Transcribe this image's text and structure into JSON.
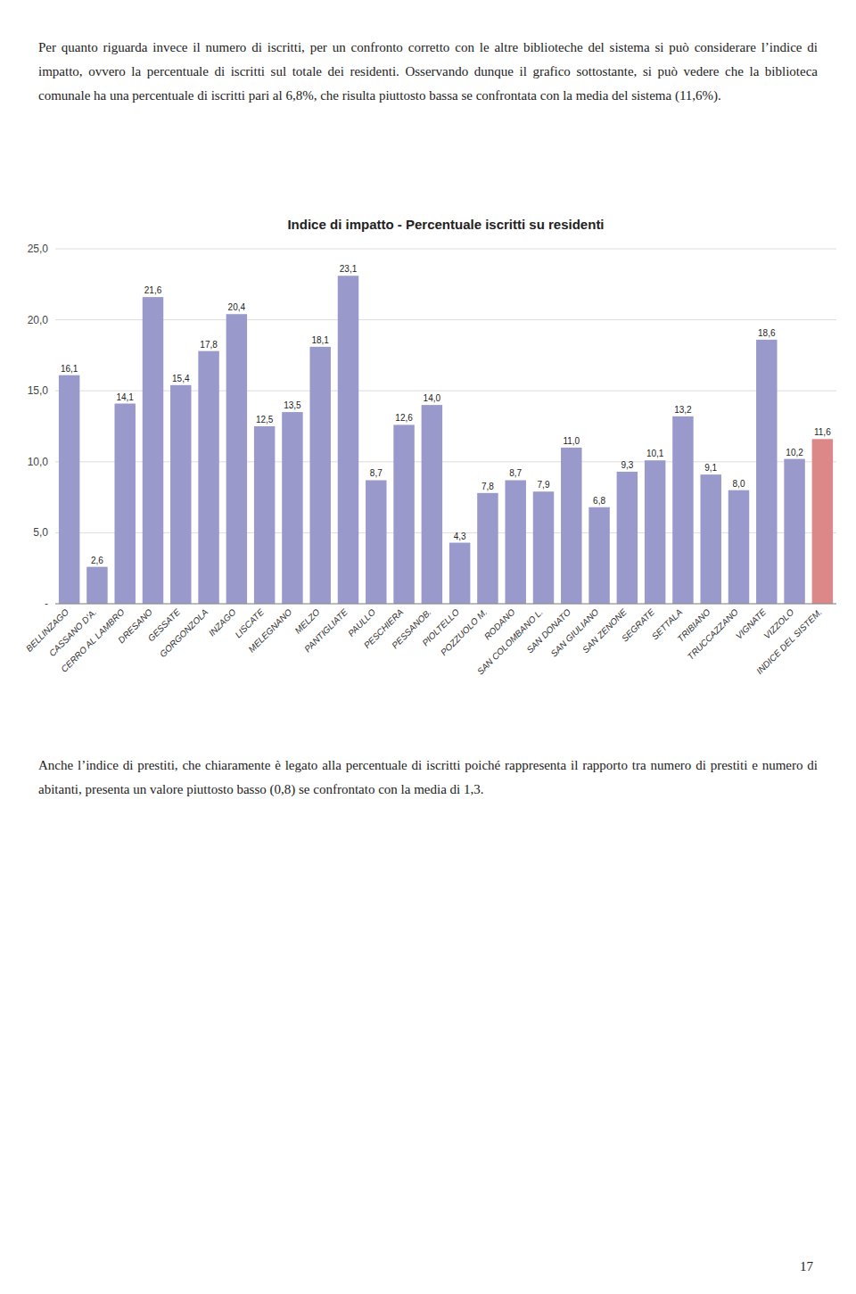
{
  "chart_data": {
    "type": "bar",
    "title": "Indice di impatto - Percentuale iscritti su residenti",
    "categories": [
      "BELLINZAGO",
      "CASSANO D'A.",
      "CERRO AL LAMBRO",
      "DRESANO",
      "GESSATE",
      "GORGONZOLA",
      "INZAGO",
      "LISCATE",
      "MELEGNANO",
      "MELZO",
      "PANTIGLIATE",
      "PAULLO",
      "PESCHIERA",
      "PESSANOB.",
      "PIOLTELLO",
      "POZZUOLO M.",
      "RODANO",
      "SAN COLOMBANO L.",
      "SAN DONATO",
      "SAN GIULIANO",
      "SAN ZENONE",
      "SEGRATE",
      "SETTALA",
      "TRIBIANO",
      "TRUCCAZZANO",
      "VIGNATE",
      "VIZZOLO",
      "INDICE DEL SISTEM."
    ],
    "values": [
      16.1,
      2.6,
      14.1,
      21.6,
      15.4,
      17.8,
      20.4,
      12.5,
      13.5,
      18.1,
      23.1,
      8.7,
      12.6,
      14.0,
      4.3,
      7.8,
      8.7,
      7.9,
      11.0,
      6.8,
      9.3,
      10.1,
      13.2,
      9.1,
      8.0,
      18.6,
      10.2,
      11.6
    ],
    "value_labels": [
      "16,1",
      "2,6",
      "14,1",
      "21,6",
      "15,4",
      "17,8",
      "20,4",
      "12,5",
      "13,5",
      "18,1",
      "23,1",
      "8,7",
      "12,6",
      "14,0",
      "4,3",
      "7,8",
      "8,7",
      "7,9",
      "11,0",
      "6,8",
      "9,3",
      "10,1",
      "13,2",
      "9,1",
      "8,0",
      "18,6",
      "10,2",
      "11,6"
    ],
    "colors": [
      "#9999cc",
      "#9999cc",
      "#9999cc",
      "#9999cc",
      "#9999cc",
      "#9999cc",
      "#9999cc",
      "#9999cc",
      "#9999cc",
      "#9999cc",
      "#9999cc",
      "#9999cc",
      "#9999cc",
      "#9999cc",
      "#9999cc",
      "#9999cc",
      "#9999cc",
      "#9999cc",
      "#9999cc",
      "#9999cc",
      "#9999cc",
      "#9999cc",
      "#9999cc",
      "#9999cc",
      "#9999cc",
      "#9999cc",
      "#9999cc",
      "#dd8888"
    ],
    "ylim": [
      0,
      25.0
    ],
    "yticks": [
      {
        "value": 0,
        "label": "-"
      },
      {
        "value": 5.0,
        "label": "5,0"
      },
      {
        "value": 10.0,
        "label": "10,0"
      },
      {
        "value": 15.0,
        "label": "15,0"
      },
      {
        "value": 20.0,
        "label": "20,0"
      },
      {
        "value": 25.0,
        "label": "25,0"
      }
    ],
    "grid": true,
    "data_labels": true
  },
  "top_text": "Per quanto riguarda invece il numero di iscritti, per un confronto corretto con le altre biblioteche del sistema si può considerare l’indice di impatto, ovvero la percentuale di iscritti sul totale dei residenti. Osservando dunque il grafico sottostante, si può vedere che la biblioteca comunale ha una percentuale di iscritti pari al 6,8%, che risulta piuttosto bassa se confrontata con la media del sistema (11,6%).",
  "bottom_text": "Anche l’indice di prestiti, che chiaramente è legato alla percentuale di iscritti poiché rappresenta il rapporto tra numero di prestiti e numero di abitanti, presenta un valore piuttosto basso (0,8) se confrontato con la media di 1,3.",
  "page_number": "17"
}
